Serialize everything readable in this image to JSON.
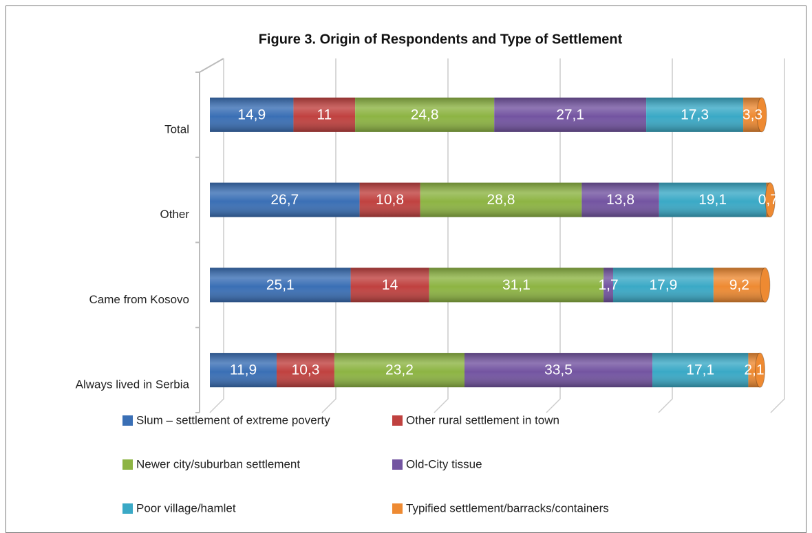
{
  "chart_data": {
    "type": "bar",
    "orientation": "horizontal",
    "stacked": true,
    "title": "Figure 3. Origin of Respondents and Type of Settlement",
    "categories": [
      "Total",
      "Other",
      "Came from Kosovo",
      "Always lived in Serbia"
    ],
    "xlim": [
      0,
      100
    ],
    "xticks": [
      0,
      20,
      40,
      60,
      80,
      100
    ],
    "grid": true,
    "series": [
      {
        "name": "Slum – settlement of extreme poverty",
        "color": "#3a6fb5",
        "values": [
          14.9,
          26.7,
          25.1,
          11.9
        ],
        "value_labels": [
          "14,9",
          "26,7",
          "25,1",
          "11,9"
        ]
      },
      {
        "name": "Other rural settlement in town",
        "color": "#c0413f",
        "values": [
          11,
          10.8,
          14,
          10.3
        ],
        "value_labels": [
          "11",
          "10,8",
          "14",
          "10,3"
        ]
      },
      {
        "name": "Newer city/suburban settlement",
        "color": "#8db443",
        "values": [
          24.8,
          28.8,
          31.1,
          23.2
        ],
        "value_labels": [
          "24,8",
          "28,8",
          "31,1",
          "23,2"
        ]
      },
      {
        "name": "Old-City tissue",
        "color": "#7354a1",
        "values": [
          27.1,
          13.8,
          1.7,
          33.5
        ],
        "value_labels": [
          "27,1",
          "13,8",
          "1,7",
          "33,5"
        ]
      },
      {
        "name": "Poor village/hamlet",
        "color": "#3aa9c6",
        "values": [
          17.3,
          19.1,
          17.9,
          17.1
        ],
        "value_labels": [
          "17,3",
          "19,1",
          "17,9",
          "17,1"
        ]
      },
      {
        "name": "Typified settlement/barracks/containers",
        "color": "#ee8a32",
        "values": [
          3.3,
          0.7,
          9.2,
          2.1
        ],
        "value_labels": [
          "3,3",
          "0,7",
          "9,2",
          "2,1"
        ]
      }
    ]
  }
}
